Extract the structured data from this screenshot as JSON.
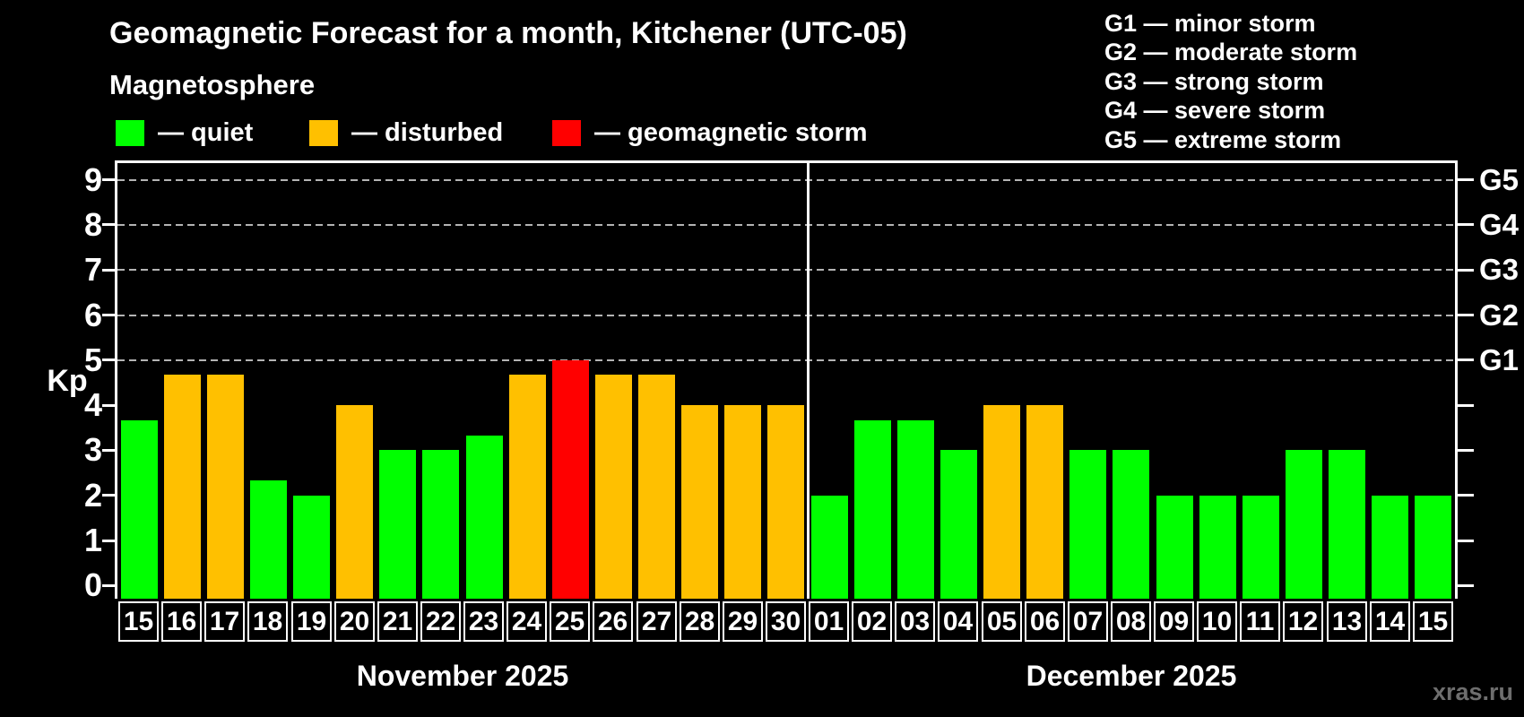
{
  "page": {
    "title": "Geomagnetic Forecast for a month, Kitchener (UTC-05)",
    "subtitle": "Magnetosphere",
    "watermark": "xras.ru"
  },
  "legend": {
    "items": [
      {
        "key": "quiet",
        "swatch_color": "#00ff00",
        "label": "— quiet"
      },
      {
        "key": "disturbed",
        "swatch_color": "#ffc000",
        "label": "— disturbed"
      },
      {
        "key": "storm",
        "swatch_color": "#ff0000",
        "label": "— geomagnetic storm"
      }
    ]
  },
  "g_scale_legend": {
    "lines": [
      "G1 — minor storm",
      "G2 — moderate storm",
      "G3 — strong storm",
      "G4 — severe storm",
      "G5 — extreme storm"
    ]
  },
  "chart_data": {
    "type": "bar",
    "title": "Geomagnetic Forecast for a month, Kitchener (UTC-05)",
    "ylabel": "Kp",
    "ylim": [
      -0.3,
      9.4
    ],
    "y_ticks": [
      0,
      1,
      2,
      3,
      4,
      5,
      6,
      7,
      8,
      9
    ],
    "gridlines_kp": [
      5,
      6,
      7,
      8,
      9
    ],
    "grid": "dashed horizontal lines at storm thresholds G1–G5",
    "legend_position": "top",
    "right_axis_labels": [
      {
        "kp": 5,
        "label": "G1"
      },
      {
        "kp": 6,
        "label": "G2"
      },
      {
        "kp": 7,
        "label": "G3"
      },
      {
        "kp": 8,
        "label": "G4"
      },
      {
        "kp": 9,
        "label": "G5"
      }
    ],
    "status_colors": {
      "quiet": "#00ff00",
      "disturbed": "#ffc000",
      "storm": "#ff0000"
    },
    "months": [
      {
        "label": "November 2025",
        "days": [
          {
            "day": "15",
            "kp": 3.67,
            "status": "quiet"
          },
          {
            "day": "16",
            "kp": 4.67,
            "status": "disturbed"
          },
          {
            "day": "17",
            "kp": 4.67,
            "status": "disturbed"
          },
          {
            "day": "18",
            "kp": 2.33,
            "status": "quiet"
          },
          {
            "day": "19",
            "kp": 2,
            "status": "quiet"
          },
          {
            "day": "20",
            "kp": 4,
            "status": "disturbed"
          },
          {
            "day": "21",
            "kp": 3,
            "status": "quiet"
          },
          {
            "day": "22",
            "kp": 3,
            "status": "quiet"
          },
          {
            "day": "23",
            "kp": 3.33,
            "status": "quiet"
          },
          {
            "day": "24",
            "kp": 4.67,
            "status": "disturbed"
          },
          {
            "day": "25",
            "kp": 5,
            "status": "storm"
          },
          {
            "day": "26",
            "kp": 4.67,
            "status": "disturbed"
          },
          {
            "day": "27",
            "kp": 4.67,
            "status": "disturbed"
          },
          {
            "day": "28",
            "kp": 4,
            "status": "disturbed"
          },
          {
            "day": "29",
            "kp": 4,
            "status": "disturbed"
          },
          {
            "day": "30",
            "kp": 4,
            "status": "disturbed"
          }
        ]
      },
      {
        "label": "December 2025",
        "days": [
          {
            "day": "01",
            "kp": 2,
            "status": "quiet"
          },
          {
            "day": "02",
            "kp": 3.67,
            "status": "quiet"
          },
          {
            "day": "03",
            "kp": 3.67,
            "status": "quiet"
          },
          {
            "day": "04",
            "kp": 3,
            "status": "quiet"
          },
          {
            "day": "05",
            "kp": 4,
            "status": "disturbed"
          },
          {
            "day": "06",
            "kp": 4,
            "status": "disturbed"
          },
          {
            "day": "07",
            "kp": 3,
            "status": "quiet"
          },
          {
            "day": "08",
            "kp": 3,
            "status": "quiet"
          },
          {
            "day": "09",
            "kp": 2,
            "status": "quiet"
          },
          {
            "day": "10",
            "kp": 2,
            "status": "quiet"
          },
          {
            "day": "11",
            "kp": 2,
            "status": "quiet"
          },
          {
            "day": "12",
            "kp": 3,
            "status": "quiet"
          },
          {
            "day": "13",
            "kp": 3,
            "status": "quiet"
          },
          {
            "day": "14",
            "kp": 2,
            "status": "quiet"
          },
          {
            "day": "15",
            "kp": 2,
            "status": "quiet"
          }
        ]
      }
    ]
  }
}
